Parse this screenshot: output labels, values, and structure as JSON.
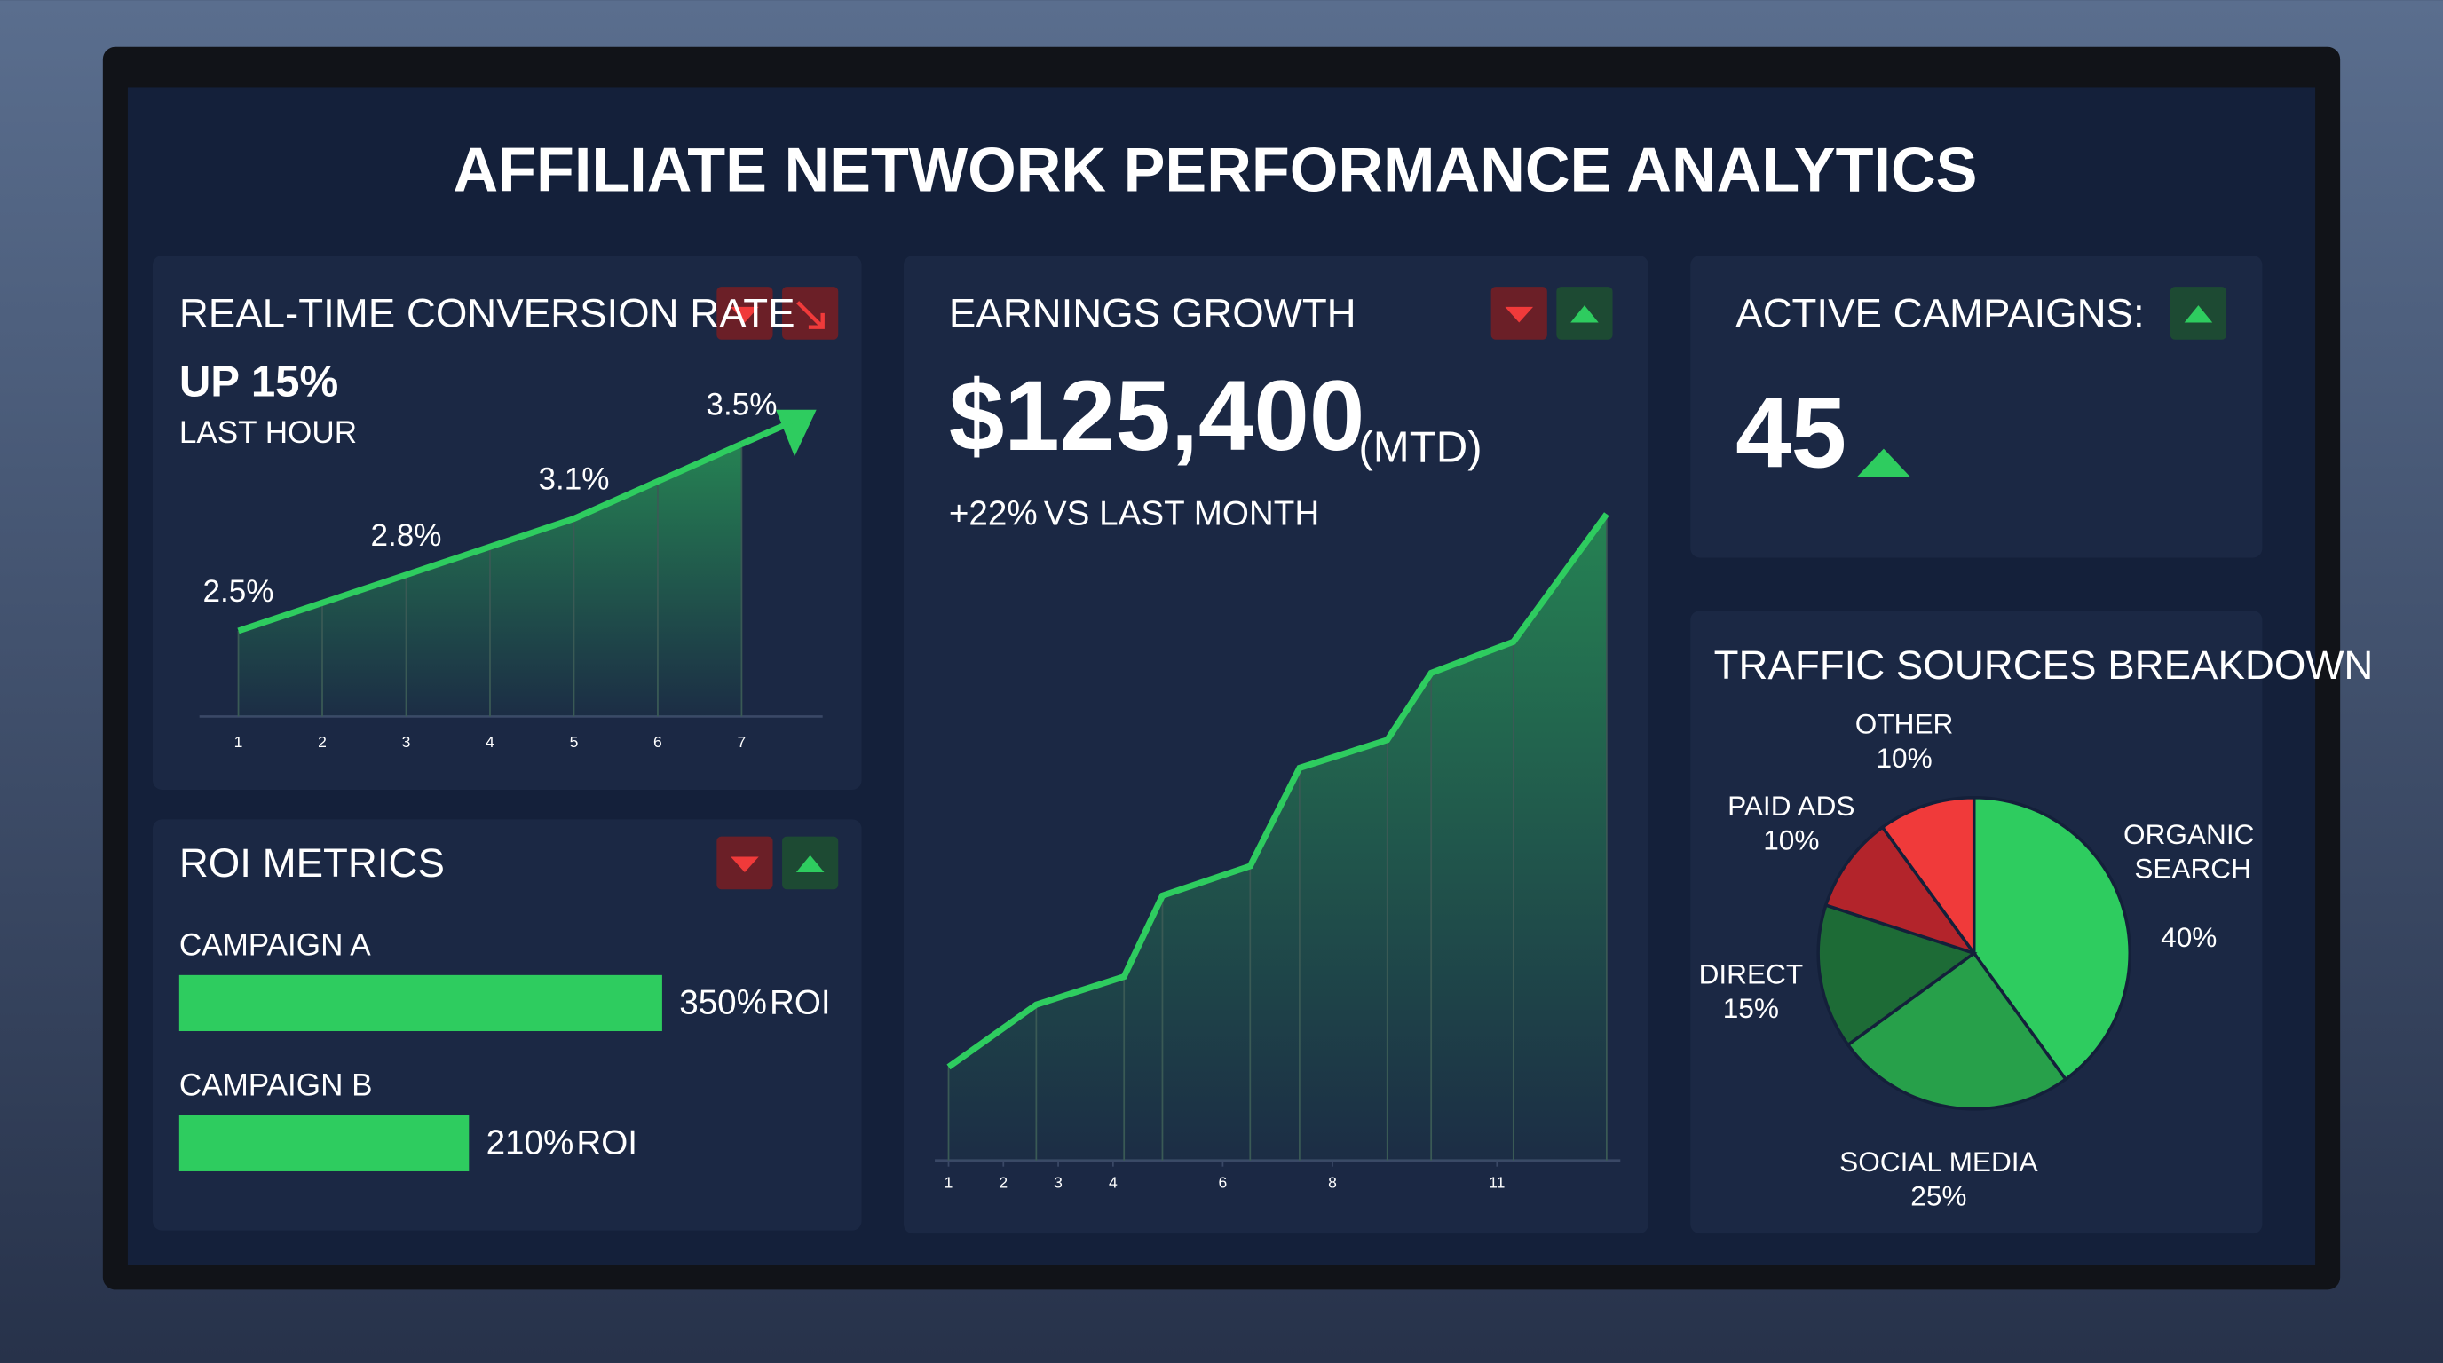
{
  "title": "AFFILIATE NETWORK PERFORMANCE ANALYTICS",
  "kpi": {
    "label": "ACTIVE CAMPAIGNS:",
    "value": 45
  },
  "chart_data": [
    {
      "type": "line",
      "title": "REAL-TIME CONVERSION RATE",
      "headline": "UP 15%",
      "subheadline": "LAST HOUR",
      "categories": [
        "1",
        "2",
        "3",
        "4",
        "5",
        "6",
        "7"
      ],
      "values": [
        2.5,
        2.65,
        2.8,
        2.95,
        3.1,
        3.3,
        3.5
      ],
      "value_labels": [
        "2.5%",
        null,
        "2.8%",
        null,
        "3.1%",
        null,
        "3.5%"
      ],
      "color": "#2ecc5f"
    },
    {
      "type": "bar",
      "title": "ROI METRICS",
      "categories": [
        "CAMPAIGN A",
        "CAMPAIGN B"
      ],
      "values": [
        350,
        210
      ],
      "value_labels": [
        "350%",
        "210%"
      ],
      "value_suffix": "ROI",
      "color": "#2ecc5f"
    },
    {
      "type": "area",
      "title": "EARNINGS GROWTH",
      "headline": "$125,400",
      "headline_note": "(MTD)",
      "change": "+22%",
      "change_note": "VS LAST MONTH",
      "x": [
        1,
        2.6,
        4.2,
        4.9,
        6.5,
        7.4,
        9.0,
        9.8,
        11.3,
        13
      ],
      "values": [
        60,
        100,
        118,
        170,
        189,
        252,
        270,
        313,
        333,
        415
      ],
      "xlim": [
        0.75,
        13.25
      ],
      "xticks": [
        1,
        2,
        3,
        4,
        6,
        8,
        11
      ],
      "color": "#2ecc5f"
    },
    {
      "type": "pie",
      "title": "TRAFFIC SOURCES BREAKDOWN",
      "categories": [
        "ORGANIC SEARCH",
        "SOCIAL MEDIA",
        "DIRECT",
        "PAID ADS",
        "OTHER"
      ],
      "values": [
        40,
        25,
        15,
        10,
        10
      ],
      "value_labels": [
        "40%",
        "25%",
        "15%",
        "10%",
        "10%"
      ],
      "colors": [
        "#2ecc5f",
        "#27a04a",
        "#1d6b36",
        "#b3242b",
        "#f03a3a"
      ],
      "label_colors": [
        "#3ddc6a",
        "#3ddc6a",
        "#3ddc6a",
        "#e0353b",
        "#e0353b"
      ]
    }
  ]
}
